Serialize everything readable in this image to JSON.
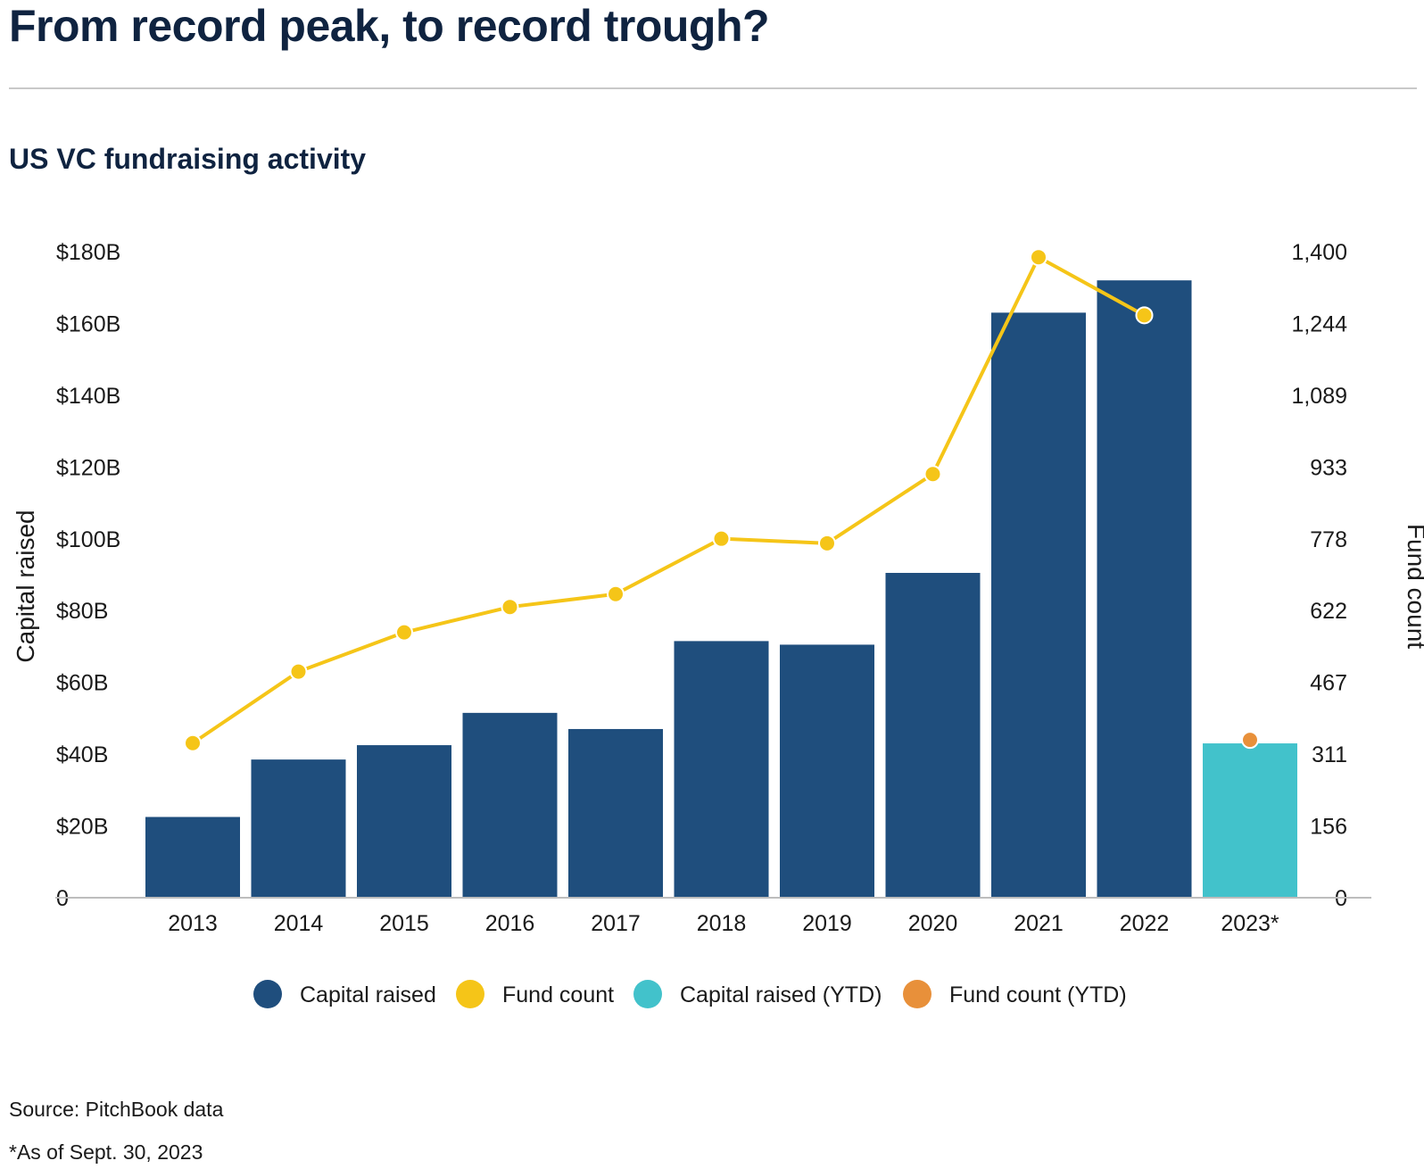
{
  "page": {
    "headline": "From record peak, to record trough?",
    "source": "Source: PitchBook data",
    "footnote": "*As of Sept. 30, 2023"
  },
  "colors": {
    "capital": "#1f4e7d",
    "count": "#f5c518",
    "capital_ytd": "#42c2cb",
    "count_ytd": "#e8903a"
  },
  "chart_data": {
    "type": "bar",
    "title": "US VC fundraising activity",
    "categories": [
      "2013",
      "2014",
      "2015",
      "2016",
      "2017",
      "2018",
      "2019",
      "2020",
      "2021",
      "2022",
      "2023*"
    ],
    "ylabel": "Capital raised",
    "y2label": "Fund count",
    "ylim": [
      0,
      180
    ],
    "y2lim": [
      0,
      1400
    ],
    "yticks": [
      "0",
      "$20B",
      "$40B",
      "$60B",
      "$80B",
      "$100B",
      "$120B",
      "$140B",
      "$160B",
      "$180B"
    ],
    "y2ticks": [
      "0",
      "156",
      "311",
      "467",
      "622",
      "778",
      "933",
      "1,089",
      "1,244",
      "1,400"
    ],
    "series": [
      {
        "name": "Capital raised",
        "type": "bar",
        "axis": "left",
        "color": "#1f4e7d",
        "values": [
          22.5,
          38.5,
          42.5,
          51.5,
          47,
          71.5,
          70.5,
          90.5,
          163,
          172,
          null
        ]
      },
      {
        "name": "Fund count",
        "type": "line",
        "axis": "right",
        "color": "#f5c518",
        "values": [
          335,
          490,
          575,
          630,
          658,
          778,
          768,
          918,
          1388,
          1262,
          null
        ]
      },
      {
        "name": "Capital raised (YTD)",
        "type": "bar",
        "axis": "left",
        "color": "#42c2cb",
        "values": [
          null,
          null,
          null,
          null,
          null,
          null,
          null,
          null,
          null,
          null,
          43
        ]
      },
      {
        "name": "Fund count (YTD)",
        "type": "point",
        "axis": "right",
        "color": "#e8903a",
        "values": [
          null,
          null,
          null,
          null,
          null,
          null,
          null,
          null,
          null,
          null,
          342
        ]
      }
    ],
    "legend_position": "bottom",
    "grid": false
  }
}
